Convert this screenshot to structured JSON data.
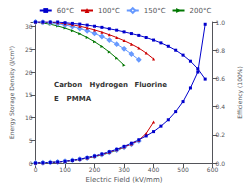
{
  "chart_data": {
    "type": "line",
    "xlabel": "Electric Field (kV/mm)",
    "ylabel": "Energy Storage Density (J/cm³)",
    "y2label": "Efficiency (100%)",
    "xlim": [
      0,
      600
    ],
    "xticks": [
      0,
      100,
      200,
      300,
      400,
      500,
      600
    ],
    "ylim": [
      0,
      31
    ],
    "yticks": [
      0,
      5,
      10,
      15,
      20,
      25,
      30
    ],
    "y2lim": [
      0,
      1.0
    ],
    "y2ticks": [
      {
        "value": 0.0,
        "label": "0.0"
      },
      0.2,
      0.4,
      0.6,
      0.8,
      {
        "value": 1.0,
        "label": "1.0"
      }
    ],
    "grid": false,
    "legend": "top",
    "annotations": [
      "Carbon",
      "Hydrogen",
      "Fluorine",
      "E",
      "PMMA"
    ],
    "series": [
      {
        "name": "200°C",
        "color": "#007700",
        "marker": "triangle_right",
        "x": [
          0,
          25,
          50,
          75,
          100,
          125,
          150,
          175,
          200,
          225,
          250,
          275,
          300
        ],
        "values": [
          0,
          0.05,
          0.12,
          0.22,
          0.38,
          0.58,
          0.8,
          1.08,
          1.4,
          1.78,
          2.25,
          2.8,
          3.4
        ]
      },
      {
        "name": "150°C",
        "color": "#6699ff",
        "marker": "diamond_open",
        "x": [
          0,
          25,
          50,
          75,
          100,
          125,
          150,
          175,
          200,
          225,
          250,
          275,
          300,
          325,
          350
        ],
        "values": [
          0,
          0.05,
          0.12,
          0.22,
          0.38,
          0.58,
          0.82,
          1.1,
          1.45,
          1.85,
          2.32,
          2.85,
          3.45,
          4.1,
          4.85
        ]
      },
      {
        "name": "100°C",
        "color": "#cc0000",
        "marker": "triangle",
        "x": [
          0,
          25,
          50,
          75,
          100,
          125,
          150,
          175,
          200,
          225,
          250,
          275,
          300,
          325,
          350,
          375,
          400
        ],
        "values": [
          0,
          0.05,
          0.12,
          0.22,
          0.38,
          0.58,
          0.82,
          1.12,
          1.48,
          1.9,
          2.38,
          2.92,
          3.52,
          4.2,
          5.0,
          6.5,
          9.0
        ]
      },
      {
        "name": "60°C",
        "color": "#0000cc",
        "marker": "square",
        "x": [
          0,
          25,
          50,
          75,
          100,
          125,
          150,
          175,
          200,
          225,
          250,
          275,
          300,
          325,
          350,
          375,
          400,
          425,
          450,
          475,
          500,
          525,
          550,
          575
        ],
        "values": [
          0,
          0.05,
          0.12,
          0.22,
          0.38,
          0.58,
          0.85,
          1.18,
          1.55,
          1.98,
          2.48,
          3.02,
          3.65,
          4.35,
          5.1,
          5.95,
          6.9,
          8.1,
          9.5,
          11.3,
          13.5,
          16.5,
          20.0,
          30.5
        ]
      },
      {
        "name": "200°C",
        "color": "#007700",
        "marker": "triangle_right",
        "axis": "y2",
        "x": [
          0,
          25,
          50,
          75,
          100,
          125,
          150,
          175,
          200,
          225,
          250,
          275,
          300
        ],
        "values": [
          0.998,
          0.993,
          0.984,
          0.972,
          0.957,
          0.938,
          0.916,
          0.89,
          0.86,
          0.826,
          0.787,
          0.743,
          0.694
        ]
      },
      {
        "name": "150°C",
        "color": "#6699ff",
        "marker": "diamond_open",
        "axis": "y2",
        "x": [
          0,
          25,
          50,
          75,
          100,
          125,
          150,
          175,
          200,
          225,
          250,
          275,
          300,
          325,
          350
        ],
        "values": [
          1.0,
          0.998,
          0.994,
          0.988,
          0.979,
          0.968,
          0.954,
          0.938,
          0.919,
          0.897,
          0.872,
          0.843,
          0.81,
          0.773,
          0.732
        ]
      },
      {
        "name": "100°C",
        "color": "#cc0000",
        "marker": "triangle",
        "axis": "y2",
        "x": [
          0,
          25,
          50,
          75,
          100,
          125,
          150,
          175,
          200,
          225,
          250,
          275,
          300,
          325,
          350,
          375,
          400
        ],
        "values": [
          1.0,
          1.0,
          0.998,
          0.994,
          0.988,
          0.98,
          0.97,
          0.958,
          0.944,
          0.928,
          0.91,
          0.89,
          0.868,
          0.843,
          0.815,
          0.78,
          0.738
        ]
      },
      {
        "name": "60°C",
        "color": "#0000cc",
        "marker": "square",
        "axis": "y2",
        "x": [
          0,
          25,
          50,
          75,
          100,
          125,
          150,
          175,
          200,
          225,
          250,
          275,
          300,
          325,
          350,
          375,
          400,
          425,
          450,
          475,
          500,
          525,
          550,
          575
        ],
        "values": [
          1.0,
          1.0,
          1.0,
          1.0,
          0.995,
          0.99,
          0.985,
          0.978,
          0.97,
          0.962,
          0.952,
          0.942,
          0.93,
          0.918,
          0.905,
          0.89,
          0.872,
          0.852,
          0.828,
          0.8,
          0.765,
          0.722,
          0.668,
          0.595
        ]
      }
    ]
  }
}
